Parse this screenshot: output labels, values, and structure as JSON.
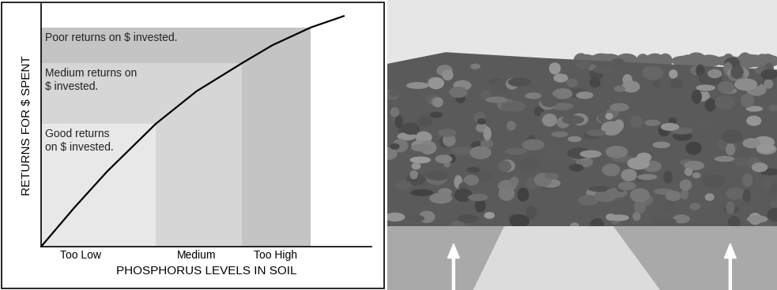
{
  "chart_data": {
    "type": "line",
    "x_label": "PHOSPHORUS LEVELS IN SOIL",
    "y_label": "RETURNS FOR $ SPENT",
    "x": [
      0,
      10,
      20,
      34.7,
      47,
      60.8,
      70,
      81.6,
      91.6
    ],
    "values": [
      0,
      16,
      31,
      50.6,
      64,
      75.6,
      83,
      90.3,
      95
    ],
    "color": "#000000",
    "xlim": [
      0,
      100
    ],
    "ylim": [
      0,
      100
    ],
    "xticks": [
      {
        "value": 12,
        "label": "Too Low"
      },
      {
        "value": 47,
        "label": "Medium"
      },
      {
        "value": 71,
        "label": "Too High"
      }
    ],
    "tick_labels": "x",
    "regions": [
      {
        "label": "Poor returns on $ invested.",
        "x": [
          0,
          81.6
        ],
        "y": [
          0,
          90.3
        ],
        "color": "#c4c4c4"
      },
      {
        "label": "Medium returns on\n$ invested.",
        "x": [
          0,
          60.8
        ],
        "y": [
          0,
          75.6
        ],
        "color": "#d6d6d6"
      },
      {
        "label": "Good returns\non $ invested.",
        "x": [
          0,
          34.7
        ],
        "y": [
          0,
          50.6
        ],
        "color": "#e8e8e8"
      }
    ]
  }
}
